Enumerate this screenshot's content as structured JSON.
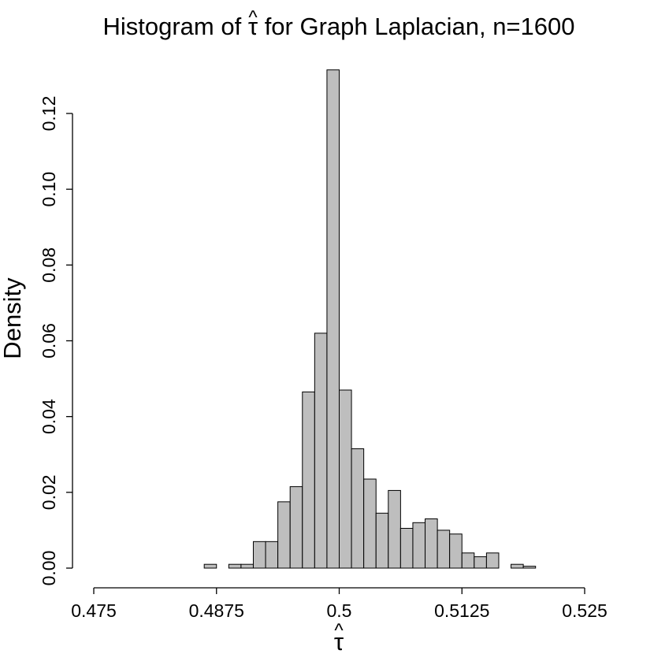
{
  "chart_data": {
    "type": "bar",
    "title_prefix": "Histogram of ",
    "title_symbol": "τ",
    "title_hat": "^",
    "title_suffix": " for Graph Laplacian, n=1600",
    "ylabel": "Density",
    "xlabel_symbol": "τ",
    "xlabel_hat": "^",
    "xlim": [
      0.475,
      0.525
    ],
    "ylim": [
      0,
      0.12
    ],
    "xticks": [
      0.475,
      0.4875,
      0.5,
      0.5125,
      0.525
    ],
    "xtick_labels": [
      "0.475",
      "0.4875",
      "0.5",
      "0.5125",
      "0.525"
    ],
    "yticks": [
      0,
      0.02,
      0.04,
      0.06,
      0.08,
      0.1,
      0.12
    ],
    "ytick_labels": [
      "0.00",
      "0.02",
      "0.04",
      "0.06",
      "0.08",
      "0.10",
      "0.12"
    ],
    "bin_width": 0.00125,
    "bin_starts": [
      0.48625,
      0.4875,
      0.48875,
      0.49,
      0.49125,
      0.4925,
      0.49375,
      0.495,
      0.49625,
      0.4975,
      0.49875,
      0.5,
      0.50125,
      0.5025,
      0.50375,
      0.505,
      0.50625,
      0.5075,
      0.50875,
      0.51,
      0.51125,
      0.5125,
      0.51375,
      0.515,
      0.51625,
      0.5175,
      0.51875,
      0.52
    ],
    "values": [
      0.001,
      0.0,
      0.001,
      0.001,
      0.007,
      0.007,
      0.0175,
      0.0215,
      0.0465,
      0.062,
      0.1315,
      0.047,
      0.0315,
      0.0235,
      0.0145,
      0.0205,
      0.0105,
      0.012,
      0.013,
      0.01,
      0.009,
      0.004,
      0.003,
      0.004,
      0.0,
      0.001,
      0.0005,
      0.0
    ],
    "grid": false,
    "legend": "none"
  }
}
